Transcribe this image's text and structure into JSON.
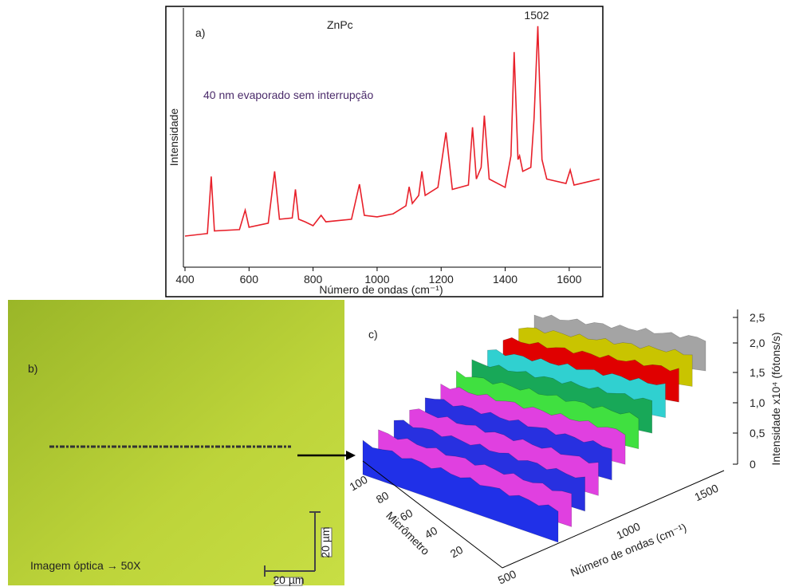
{
  "chart_data": {
    "type": "line",
    "title": "ZnPc",
    "x_label": "Número de ondas (cm⁻¹)",
    "y_label": "Intensidade",
    "annotations": [
      "a)",
      "40 nm evaporado sem interrupção",
      "1502"
    ],
    "x": [
      400,
      470,
      482,
      492,
      570,
      588,
      600,
      660,
      680,
      695,
      735,
      745,
      755,
      775,
      800,
      825,
      840,
      920,
      945,
      960,
      1000,
      1050,
      1090,
      1100,
      1110,
      1130,
      1140,
      1150,
      1190,
      1215,
      1235,
      1285,
      1298,
      1310,
      1325,
      1335,
      1350,
      1400,
      1418,
      1428,
      1440,
      1445,
      1455,
      1480,
      1490,
      1502,
      1515,
      1530,
      1590,
      1603,
      1615,
      1660,
      1695
    ],
    "values": [
      12,
      13,
      35,
      14,
      14.5,
      22,
      15.4,
      17,
      37,
      18.5,
      19,
      30,
      18.5,
      17.5,
      16,
      20,
      17.5,
      18.5,
      32,
      20,
      19.4,
      20.6,
      23.7,
      31,
      24.6,
      27.7,
      37,
      27.7,
      30.8,
      52,
      30,
      31.7,
      54,
      34,
      38.5,
      58.5,
      34,
      30.8,
      43,
      83,
      41.5,
      43,
      37,
      38.5,
      57,
      93,
      41.5,
      34,
      32.3,
      37.5,
      31.7,
      33,
      34
    ],
    "color": "#e8202a",
    "xlim": [
      395,
      1695
    ],
    "xticks": [
      400,
      600,
      800,
      1000,
      1200,
      1400,
      1600
    ],
    "ylim": [
      0,
      100
    ]
  },
  "panel_b": {
    "label": "b)",
    "caption": "Imagem óptica → 50X",
    "scale_bars": [
      "20 µm",
      "20 µm"
    ]
  },
  "panel_c": {
    "label": "c)",
    "z_axis_label": "Intensidade x10⁴ (fótons/s)",
    "z_ticks": [
      "0",
      "0,5",
      "1,0",
      "1,5",
      "2,0",
      "2,5"
    ],
    "micrometer_axis_label": "Micrômetro",
    "micrometer_ticks": [
      "100",
      "80",
      "60",
      "40",
      "20"
    ],
    "wavenumber_axis_label": "Número de ondas (cm⁻¹)",
    "wavenumber_ticks": [
      "500",
      "1000",
      "1500"
    ]
  }
}
